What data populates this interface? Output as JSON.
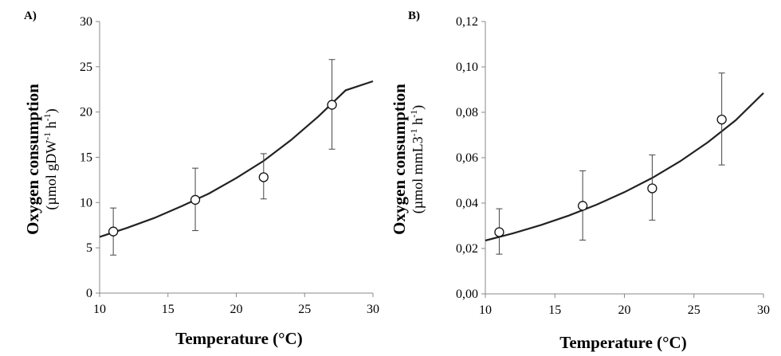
{
  "chart_data": [
    {
      "type": "scatter",
      "panel_label": "A)",
      "xlabel": "Temperature (°C)",
      "ylabel": "Oxygen consumption",
      "ylabel_units": "(µmol gDW-1 h-1)",
      "ylabel_units_parts": {
        "open": "(µmol gDW",
        "sup1": "-1",
        "mid": " h",
        "sup2": "-1",
        "close": ")"
      },
      "xlim": [
        10,
        30
      ],
      "ylim": [
        0,
        30
      ],
      "xticks": [
        10,
        15,
        20,
        25,
        30
      ],
      "yticks": [
        0,
        5,
        10,
        15,
        20,
        25,
        30
      ],
      "xtick_labels": [
        "10",
        "15",
        "20",
        "25",
        "30"
      ],
      "ytick_labels": [
        "0",
        "5",
        "10",
        "15",
        "20",
        "25",
        "30"
      ],
      "points": [
        {
          "x": 11,
          "y": 6.8,
          "err_low": 4.2,
          "err_high": 9.4
        },
        {
          "x": 17,
          "y": 10.3,
          "err_low": 6.9,
          "err_high": 13.8
        },
        {
          "x": 22,
          "y": 12.8,
          "err_low": 10.4,
          "err_high": 15.4
        },
        {
          "x": 27,
          "y": 20.8,
          "err_low": 15.9,
          "err_high": 25.8
        }
      ],
      "fit_curve": [
        [
          10,
          6.2
        ],
        [
          12,
          7.2
        ],
        [
          14,
          8.3
        ],
        [
          16,
          9.6
        ],
        [
          18,
          11.0
        ],
        [
          20,
          12.7
        ],
        [
          22,
          14.6
        ],
        [
          24,
          16.9
        ],
        [
          26,
          19.5
        ],
        [
          28,
          22.4
        ],
        [
          30,
          23.4
        ]
      ],
      "grid": false
    },
    {
      "type": "scatter",
      "panel_label": "B)",
      "xlabel": "Temperature (°C)",
      "ylabel": "Oxygen consumption",
      "ylabel_units": "(µmol mmL3-1 h-1)",
      "ylabel_units_parts": {
        "open": "(µmol mmL3",
        "sup1": "-1",
        "mid": " h",
        "sup2": "-1",
        "close": ")"
      },
      "xlim": [
        10,
        30
      ],
      "ylim": [
        0,
        0.12
      ],
      "xticks": [
        10,
        15,
        20,
        25,
        30
      ],
      "yticks": [
        0,
        0.02,
        0.04,
        0.06,
        0.08,
        0.1,
        0.12
      ],
      "xtick_labels": [
        "10",
        "15",
        "20",
        "25",
        "30"
      ],
      "ytick_labels": [
        "0,00",
        "0,02",
        "0,04",
        "0,06",
        "0,08",
        "0,10",
        "0,12"
      ],
      "points": [
        {
          "x": 11,
          "y": 0.0272,
          "err_low": 0.0175,
          "err_high": 0.0375
        },
        {
          "x": 17,
          "y": 0.0388,
          "err_low": 0.0237,
          "err_high": 0.0542
        },
        {
          "x": 22,
          "y": 0.0465,
          "err_low": 0.0325,
          "err_high": 0.0612
        },
        {
          "x": 27,
          "y": 0.0768,
          "err_low": 0.0568,
          "err_high": 0.0973
        }
      ],
      "fit_curve": [
        [
          10,
          0.0235
        ],
        [
          12,
          0.0267
        ],
        [
          14,
          0.0303
        ],
        [
          16,
          0.0345
        ],
        [
          18,
          0.0393
        ],
        [
          20,
          0.0448
        ],
        [
          22,
          0.0511
        ],
        [
          24,
          0.0584
        ],
        [
          26,
          0.0668
        ],
        [
          28,
          0.0765
        ],
        [
          30,
          0.0885
        ]
      ],
      "grid": false
    }
  ]
}
